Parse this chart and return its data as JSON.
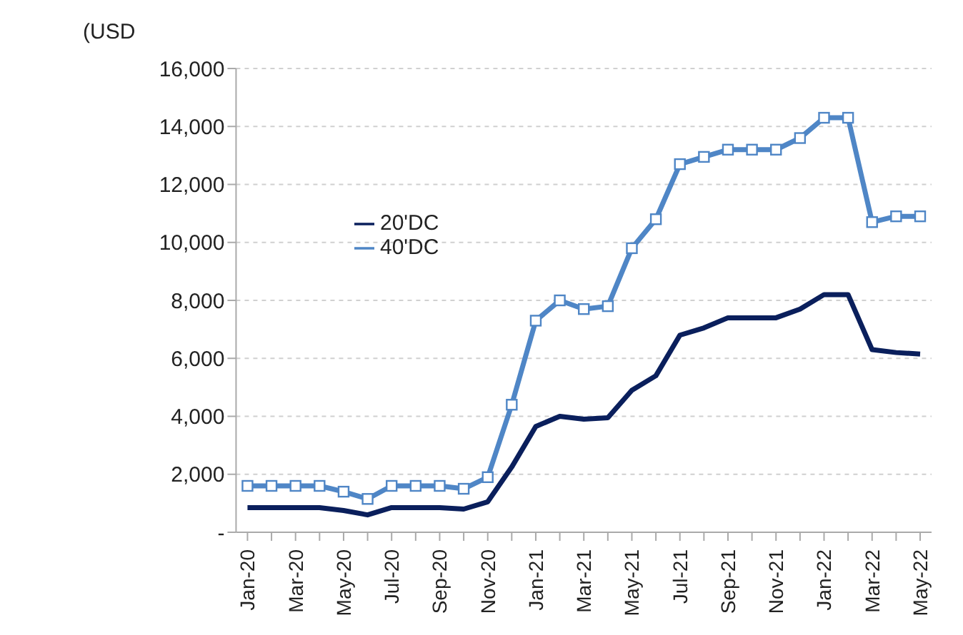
{
  "chart_data": {
    "type": "line",
    "ylabel": "(USD",
    "categories": [
      "Jan-20",
      null,
      "Mar-20",
      null,
      "May-20",
      null,
      "Jul-20",
      null,
      "Sep-20",
      null,
      "Nov-20",
      null,
      "Jan-21",
      null,
      "Mar-21",
      null,
      "May-21",
      null,
      "Jul-21",
      null,
      "Sep-21",
      null,
      "Nov-21",
      null,
      "Jan-22",
      null,
      "Mar-22",
      null,
      "May-22"
    ],
    "series": [
      {
        "name": "20'DC",
        "color": "#0a1f5c",
        "marker": "none",
        "values": [
          850,
          850,
          850,
          850,
          750,
          600,
          850,
          850,
          850,
          800,
          1050,
          2250,
          3650,
          4000,
          3900,
          3950,
          4900,
          5400,
          6800,
          7050,
          7400,
          7400,
          7400,
          7700,
          8200,
          8200,
          6300,
          6200,
          6150
        ]
      },
      {
        "name": "40'DC",
        "color": "#4f86c6",
        "marker": "square",
        "values": [
          1600,
          1600,
          1600,
          1600,
          1400,
          1150,
          1600,
          1600,
          1600,
          1500,
          1900,
          4400,
          7300,
          8000,
          7700,
          7800,
          9800,
          10800,
          12700,
          12950,
          13200,
          13200,
          13200,
          13600,
          14300,
          14300,
          10700,
          10900,
          10900
        ]
      }
    ],
    "ylim": [
      0,
      16000
    ],
    "yticks": [
      {
        "value": 0,
        "label": "-"
      },
      {
        "value": 2000,
        "label": "2,000"
      },
      {
        "value": 4000,
        "label": "4,000"
      },
      {
        "value": 6000,
        "label": "6,000"
      },
      {
        "value": 8000,
        "label": "8,000"
      },
      {
        "value": 10000,
        "label": "10,000"
      },
      {
        "value": 12000,
        "label": "12,000"
      },
      {
        "value": 14000,
        "label": "14,000"
      },
      {
        "value": 16000,
        "label": "16,000"
      }
    ],
    "grid": "y",
    "legend": "left",
    "line_style": "solid"
  }
}
